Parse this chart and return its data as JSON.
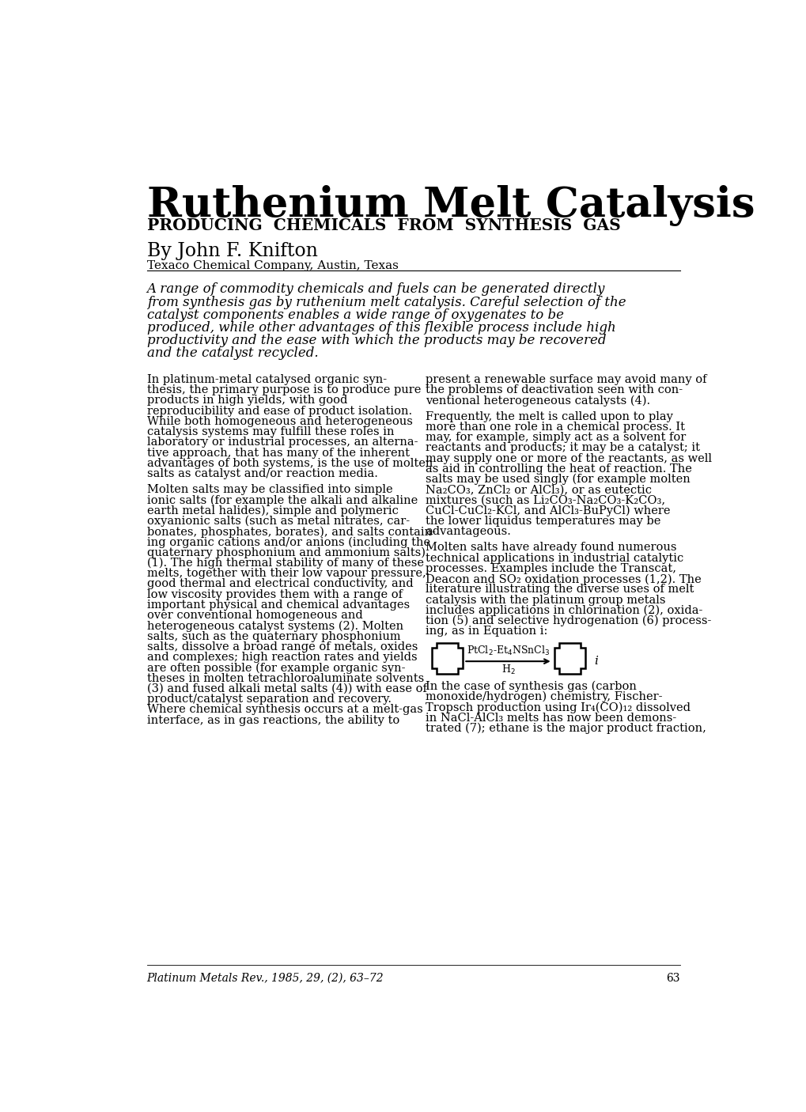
{
  "title": "Ruthenium Melt Catalysis",
  "subtitle": "PRODUCING  CHEMICALS  FROM  SYNTHESIS  GAS",
  "author": "By John F. Knifton",
  "affiliation": "Texaco Chemical Company, Austin, Texas",
  "abstract": "A range of commodity chemicals and fuels can be generated directly\nfrom synthesis gas by ruthenium melt catalysis. Careful selection of the\ncatalyst components enables a wide range of oxygenates to be\nproduced, while other advantages of this flexible process include high\nproductivity and the ease with which the products may be recovered\nand the catalyst recycled.",
  "col1_paragraphs": [
    "In platinum-metal catalysed organic syn-\nthesis, the primary purpose is to produce pure\nproducts in high yields, with good\nreproducibility and ease of product isolation.\nWhile both homogeneous and heterogeneous\ncatalysis systems may fulfill these roles in\nlaboratory or industrial processes, an alterna-\ntive approach, that has many of the inherent\nadvantages of both systems, is the use of molten\nsalts as catalyst and/or reaction media.",
    "Molten salts may be classified into simple\nionic salts (for example the alkali and alkaline\nearth metal halides), simple and polymeric\noxyanionic salts (such as metal nitrates, car-\nbonates, phosphates, borates), and salts contain-\ning organic cations and/or anions (including the\nquaternary phosphonium and ammonium salts)\n(1). The high thermal stability of many of these\nmelts, together with their low vapour pressure,\ngood thermal and electrical conductivity, and\nlow viscosity provides them with a range of\nimportant physical and chemical advantages\nover conventional homogeneous and\nheterogeneous catalyst systems (2). Molten\nsalts, such as the quaternary phosphonium\nsalts, dissolve a broad range of metals, oxides\nand complexes; high reaction rates and yields\nare often possible (for example organic syn-\ntheses in molten tetrachloroaluminate solvents\n(3) and fused alkali metal salts (4)) with ease of\nproduct/catalyst separation and recovery.\nWhere chemical synthesis occurs at a melt-gas\ninterface, as in gas reactions, the ability to"
  ],
  "col2_paragraphs": [
    "present a renewable surface may avoid many of\nthe problems of deactivation seen with con-\nventional heterogeneous catalysts (4).",
    "Frequently, the melt is called upon to play\nmore than one role in a chemical process. It\nmay, for example, simply act as a solvent for\nreactants and products; it may be a catalyst; it\nmay supply one or more of the reactants, as well\nas aid in controlling the heat of reaction. The\nsalts may be used singly (for example molten\nNa₂CO₃, ZnCl₂ or AlCl₃), or as eutectic\nmixtures (such as Li₂CO₃-Na₂CO₃-K₂CO₃,\nCuCl-CuCl₂-KCl, and AlCl₃-BuPyCl) where\nthe lower liquidus temperatures may be\nadvantageous.",
    "Molten salts have already found numerous\ntechnical applications in industrial catalytic\nprocesses. Examples include the Transcat,\nDeacon and SO₂ oxidation processes (1,2). The\nliterature illustrating the diverse uses of melt\ncatalysis with the platinum group metals\nincludes applications in chlorination (2), oxida-\ntion (5) and selective hydrogenation (6) process-\ning, as in Equation i:",
    "In the case of synthesis gas (carbon\nmonoxide/hydrogen) chemistry, Fischer-\nTropsch production using Ir₄(CO)₁₂ dissolved\nin NaCl-AlCl₃ melts has now been demons-\ntrated (7); ethane is the major product fraction,"
  ],
  "footer_journal": "Platinum Metals Rev.,",
  "footer_year": "1985,",
  "footer_vol": "29,",
  "footer_issue": "(2),",
  "footer_pages": "63–72",
  "footer_page_num": "63",
  "bg_color": "#ffffff",
  "text_color": "#000000"
}
